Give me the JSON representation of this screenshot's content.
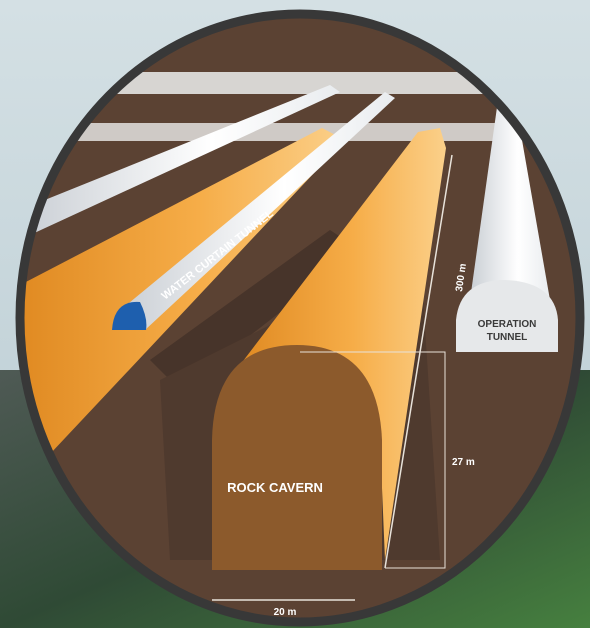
{
  "labels": {
    "water_curtain_tunnel": "WATER CURTAIN TUNNEL",
    "operation_tunnel": [
      "OPERATION",
      "TUNNEL"
    ],
    "rock_cavern": "ROCK CAVERN",
    "height": "300 m",
    "depth": "27 m",
    "width": "20 m"
  }
}
